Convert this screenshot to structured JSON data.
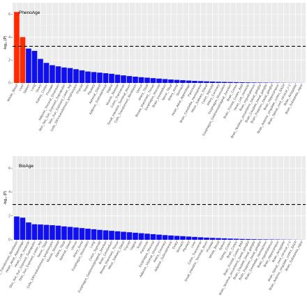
{
  "colors": {
    "highlight": "#ff2a00",
    "bar": "#1010ee",
    "panel": "#ebebeb"
  },
  "chart_data": [
    {
      "type": "bar",
      "title": "PhenoAge",
      "ylabel": "-log₁₀ (P)",
      "ylim": [
        0,
        7
      ],
      "yticks": [
        0,
        2,
        4,
        6
      ],
      "threshold": 3.2,
      "categories": [
        "Whole_Blood",
        "Liver",
        "Spleen",
        "Lung",
        "Ovary",
        "Kidney_Cortex",
        "Prostate",
        "Adipose_Visceral_Omentum",
        "Skin_Not_Sun_Exposed_Suprapubic",
        "Skin_Sun_Exposed_Lower_leg",
        "Cells_EBV-transformed_lymphocytes",
        "Thyroid",
        "Testis",
        "Pituitary",
        "Adrenal_Gland",
        "Adipose_Subcutaneous",
        "Vagina",
        "Muscle_Skeletal",
        "Colon_Transverse",
        "Small_Intestine_Terminal_Ileum",
        "Cells_Transformed_fibroblasts",
        "Uterus",
        "Artery_Tibial",
        "Breast_Mammary_Tissue",
        "Esophagus_Mucosa",
        "Brain_Cerebellum",
        "Nerve_Tibial",
        "Artery_Aorta",
        "Stomach",
        "Heart_Atrial_Appendage",
        "Pancreas",
        "Brain_Cerebellar_Hemisphere",
        "Minor_Salivary_Gland",
        "Colon_Sigmoid",
        "Artery_Coronary",
        "Esophagus_Muscularis",
        "Esophagus_Gastroesophageal_Junction",
        "Brain_Cortex",
        "Brain_Frontal_Cortex_BA9",
        "Heart_Left_Ventricle",
        "Brain_Hypothalamus",
        "Brain_Nucleus_accumbens_basal_ganglia",
        "Brain_Caudate_basal_ganglia",
        "Brain_Putamen_basal_ganglia",
        "Brain_Hippocampus",
        "Brain_Anterior_cingulate_cortex_BA24",
        "Brain_Spinal_cord_cervical_c-1",
        "Brain_Amygdala",
        "Brain_Substantia_nigra"
      ],
      "values": [
        6.2,
        4.0,
        3.0,
        2.8,
        2.1,
        1.75,
        1.55,
        1.45,
        1.35,
        1.3,
        1.2,
        1.1,
        1.0,
        0.95,
        0.9,
        0.85,
        0.8,
        0.72,
        0.66,
        0.6,
        0.55,
        0.5,
        0.46,
        0.42,
        0.38,
        0.34,
        0.3,
        0.27,
        0.24,
        0.21,
        0.18,
        0.16,
        0.14,
        0.12,
        0.1,
        0.09,
        0.08,
        0.07,
        0.06,
        0.05,
        0.04,
        0.035,
        0.03,
        0.025,
        0.02,
        0.015,
        0.01,
        0.008,
        0.005
      ],
      "highlight_count": 2
    },
    {
      "type": "bar",
      "title": "BioAge",
      "ylabel": "-log₁₀ (P)",
      "ylim": [
        0,
        7
      ],
      "yticks": [
        0,
        2,
        4,
        6
      ],
      "threshold": 2.95,
      "categories": [
        "Cells_Transformed_fibroblasts",
        "Heart_Atrial_Appendage",
        "Heart_Left_Ventricle",
        "Skin_Not_Sun_Exposed_Suprapubic",
        "Skin_Sun_Exposed_Lower_leg",
        "Nerve_Tibial",
        "Cells_EBV-transformed_lymphocytes",
        "Muscle_Skeletal",
        "Artery_Tibial",
        "Adrenal_Gland",
        "Uterus",
        "Artery_Aorta",
        "Esophagus_Muscularis",
        "Lung",
        "Colon_Sigmoid",
        "Esophagus_Gastroesophageal_Junction",
        "Brain_Cerebellum",
        "Breast_Mammary_Tissue",
        "Minor_Salivary_Gland",
        "Thyroid",
        "Vagina",
        "Testis",
        "Pancreas",
        "Esophagus_Mucosa",
        "Adipose_Visceral_Omentum",
        "Artery_Coronary",
        "Adipose_Subcutaneous",
        "Ovary",
        "Stomach",
        "Pituitary",
        "Liver",
        "Colon_Transverse",
        "Small_Intestine_Terminal_Ileum",
        "Prostate",
        "Whole_Blood",
        "Spleen",
        "Kidney_Cortex",
        "Brain_Cortex",
        "Brain_Frontal_Cortex_BA9",
        "Brain_Nucleus_accumbens_basal_ganglia",
        "Brain_Caudate_basal_ganglia",
        "Brain_Putamen_basal_ganglia",
        "Brain_Cerebellar_Hemisphere",
        "Brain_Hypothalamus",
        "Brain_Hippocampus",
        "Brain_Amygdala",
        "Brain_Spinal_cord_cervical_c-1",
        "Brain_Anterior_cingulate_cortex_BA24",
        "Brain_Substantia_nigra"
      ],
      "values": [
        1.95,
        1.85,
        1.45,
        1.3,
        1.28,
        1.25,
        1.22,
        1.18,
        1.12,
        1.08,
        1.03,
        0.98,
        0.93,
        0.88,
        0.83,
        0.79,
        0.75,
        0.71,
        0.67,
        0.63,
        0.59,
        0.55,
        0.51,
        0.47,
        0.43,
        0.39,
        0.36,
        0.33,
        0.3,
        0.27,
        0.24,
        0.21,
        0.18,
        0.16,
        0.14,
        0.12,
        0.1,
        0.085,
        0.07,
        0.06,
        0.05,
        0.04,
        0.035,
        0.03,
        0.025,
        0.02,
        0.015,
        0.01,
        0.005
      ],
      "highlight_count": 0
    }
  ]
}
